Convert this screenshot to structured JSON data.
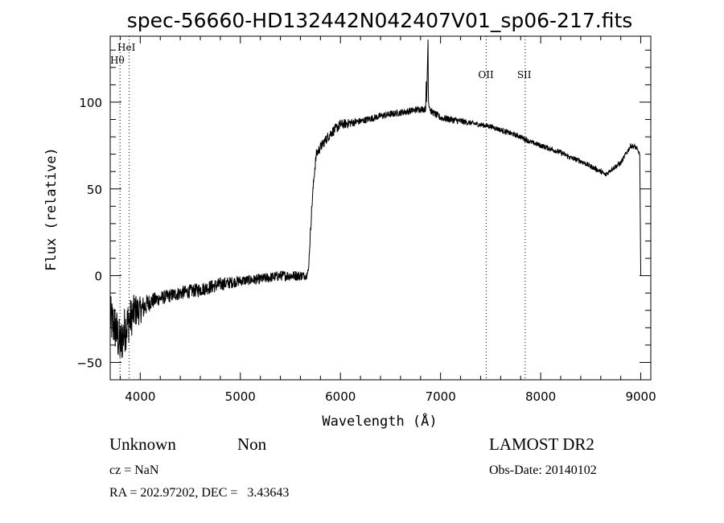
{
  "chart_data": {
    "type": "line",
    "title": "spec-56660-HD132442N042407V01_sp06-217.fits",
    "xlabel": "Wavelength (Å)",
    "ylabel": "Flux (relative)",
    "xlim": [
      3700,
      9100
    ],
    "ylim": [
      -60,
      138
    ],
    "xticks": [
      4000,
      5000,
      6000,
      7000,
      8000,
      9000
    ],
    "yticks": [
      -50,
      0,
      50,
      100
    ],
    "grid": false,
    "line_color": "#000000",
    "series_anchors": {
      "x": [
        3700,
        3750,
        3800,
        3850,
        3900,
        3950,
        4000,
        4100,
        4200,
        4400,
        4600,
        4800,
        5000,
        5200,
        5400,
        5600,
        5660,
        5680,
        5700,
        5720,
        5740,
        5760,
        5800,
        5900,
        6000,
        6200,
        6400,
        6600,
        6800,
        6850,
        6870,
        6880,
        6900,
        6950,
        7000,
        7100,
        7200,
        7300,
        7400,
        7500,
        7600,
        7700,
        7800,
        7900,
        8000,
        8100,
        8200,
        8300,
        8400,
        8500,
        8600,
        8650,
        8700,
        8800,
        8850,
        8900,
        8950,
        8990,
        9000
      ],
      "y": [
        -25,
        -30,
        -40,
        -30,
        -25,
        -20,
        -20,
        -15,
        -13,
        -10,
        -8,
        -5,
        -3,
        -2,
        0,
        0,
        0,
        3,
        25,
        45,
        60,
        70,
        74,
        82,
        87,
        89,
        92,
        94,
        96,
        96,
        136,
        100,
        95,
        93,
        91,
        90,
        89,
        88,
        87,
        86,
        84,
        82,
        80,
        77,
        75,
        73,
        71,
        68,
        66,
        63,
        60,
        58,
        61,
        65,
        70,
        75,
        74,
        70,
        0
      ],
      "noise": [
        14,
        14,
        14,
        14,
        12,
        10,
        8,
        5,
        4,
        4,
        4,
        4,
        3,
        3,
        3,
        3,
        2,
        2,
        3,
        3,
        3,
        3,
        3,
        3,
        3,
        2,
        2,
        2,
        2,
        2,
        0,
        2,
        2,
        2,
        2,
        2,
        2,
        1.5,
        1.5,
        1.5,
        1.5,
        1.5,
        1.5,
        1.5,
        1.5,
        1.5,
        1.5,
        1.5,
        1.5,
        1.5,
        1.5,
        1.5,
        1.5,
        1.5,
        1.5,
        1.5,
        1.5,
        1,
        0
      ]
    },
    "lines": [
      {
        "label": "HeI",
        "x": 3889
      },
      {
        "label": "Hθ",
        "x": 3798
      },
      {
        "label": "OII",
        "x": 7456
      },
      {
        "label": "SII",
        "x": 7845
      }
    ]
  },
  "info": {
    "class": "Unknown",
    "subclass": "Non",
    "survey": "LAMOST DR2",
    "cz": "cz = NaN",
    "obs_date": "Obs-Date: 20140102",
    "radec": "RA = 202.97202, DEC =   3.43643"
  }
}
